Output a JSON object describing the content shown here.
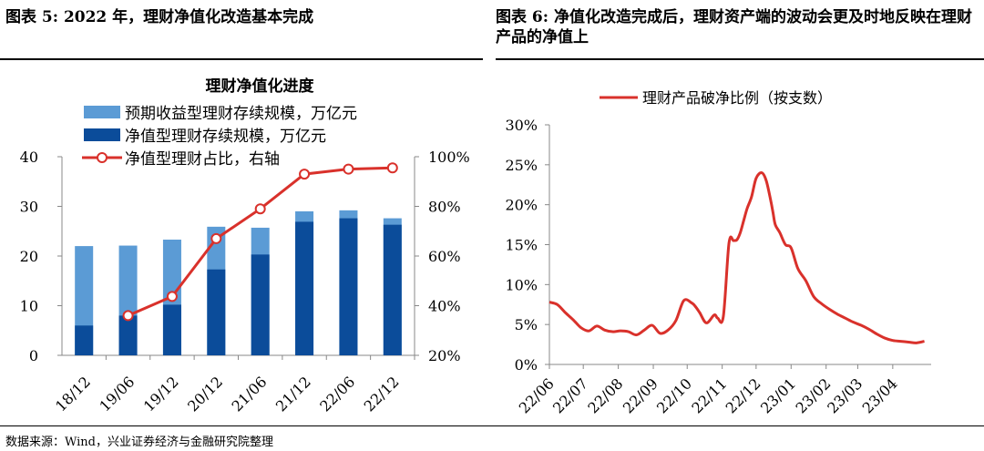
{
  "left_title": "图表 5:  2022 年，理财净值化改造基本完成",
  "right_title": "图表 6:  净值化改造完成后，理财资产端的波动会更及时地反映在理财产品的净值上",
  "source": "数据来源：Wind，兴业证券经济与金融研究院整理",
  "colors": {
    "light_bar": "#5b9bd5",
    "dark_bar": "#0b4c9a",
    "line": "#d9312b"
  },
  "chart_data": [
    {
      "type": "bar",
      "title": "理财净值化进度",
      "categories": [
        "18/12",
        "19/06",
        "19/12",
        "20/12",
        "21/06",
        "21/12",
        "22/06",
        "22/12"
      ],
      "series": [
        {
          "name": "预期收益型理财存续规模，万亿元",
          "axis": "left",
          "values": [
            22.0,
            22.1,
            23.3,
            25.9,
            25.7,
            29.0,
            29.2,
            27.6
          ]
        },
        {
          "name": "净值型理财存续规模，万亿元",
          "axis": "left",
          "values": [
            6.0,
            8.0,
            10.2,
            17.3,
            20.3,
            26.9,
            27.6,
            26.3
          ]
        },
        {
          "name": "净值型理财占比，右轴",
          "type": "line",
          "axis": "right",
          "values": [
            null,
            0.36,
            0.437,
            0.67,
            0.79,
            0.93,
            0.95,
            0.955
          ]
        }
      ],
      "yticks_left": [
        "0",
        "10",
        "20",
        "30",
        "40"
      ],
      "ylim_left": [
        0,
        40
      ],
      "yticks_right": [
        "20%",
        "40%",
        "60%",
        "80%",
        "100%"
      ],
      "ylim_right": [
        0.2,
        1.0
      ],
      "legend": "top"
    },
    {
      "type": "line",
      "series": [
        {
          "name": "理财产品破净比例（按支数）",
          "x": [
            "2022-06-01",
            "2022-06-08",
            "2022-06-15",
            "2022-06-22",
            "2022-06-29",
            "2022-07-06",
            "2022-07-13",
            "2022-07-20",
            "2022-07-27",
            "2022-08-03",
            "2022-08-10",
            "2022-08-17",
            "2022-08-24",
            "2022-08-31",
            "2022-09-07",
            "2022-09-14",
            "2022-09-21",
            "2022-09-28",
            "2022-10-05",
            "2022-10-08",
            "2022-10-12",
            "2022-10-18",
            "2022-10-25",
            "2022-10-28",
            "2022-11-02",
            "2022-11-07",
            "2022-11-11",
            "2022-11-14",
            "2022-11-17",
            "2022-11-20",
            "2022-11-23",
            "2022-11-27",
            "2022-12-01",
            "2022-12-06",
            "2022-12-10",
            "2022-12-14",
            "2022-12-16",
            "2022-12-18",
            "2022-12-22",
            "2022-12-27",
            "2023-01-01",
            "2023-01-07",
            "2023-01-14",
            "2023-01-21",
            "2023-01-28",
            "2023-02-04",
            "2023-02-11",
            "2023-02-18",
            "2023-02-25",
            "2023-03-04",
            "2023-03-11",
            "2023-03-18",
            "2023-03-25",
            "2023-04-01",
            "2023-04-08",
            "2023-04-15",
            "2023-04-22",
            "2023-04-29"
          ],
          "values": [
            7.8,
            7.5,
            6.5,
            5.6,
            4.6,
            4.2,
            4.8,
            4.3,
            4.1,
            4.2,
            4.1,
            3.7,
            4.3,
            4.9,
            3.9,
            4.3,
            5.5,
            8.0,
            7.7,
            7.3,
            6.5,
            5.2,
            6.2,
            5.8,
            6.0,
            15.2,
            15.5,
            15.6,
            16.5,
            18.0,
            19.5,
            21.0,
            23.3,
            24.0,
            23.0,
            20.5,
            19.0,
            17.5,
            16.5,
            15.0,
            14.6,
            12.0,
            10.5,
            8.5,
            7.6,
            6.9,
            6.3,
            5.8,
            5.3,
            4.9,
            4.4,
            3.8,
            3.3,
            3.0,
            2.9,
            2.8,
            2.7,
            2.9
          ]
        }
      ],
      "xticks": [
        "22/06",
        "22/07",
        "22/08",
        "22/09",
        "22/10",
        "22/11",
        "22/12",
        "23/01",
        "23/02",
        "23/03",
        "23/04"
      ],
      "yticks": [
        "0%",
        "5%",
        "10%",
        "15%",
        "20%",
        "25%",
        "30%"
      ],
      "ylim": [
        0,
        30
      ],
      "legend": "top"
    }
  ]
}
